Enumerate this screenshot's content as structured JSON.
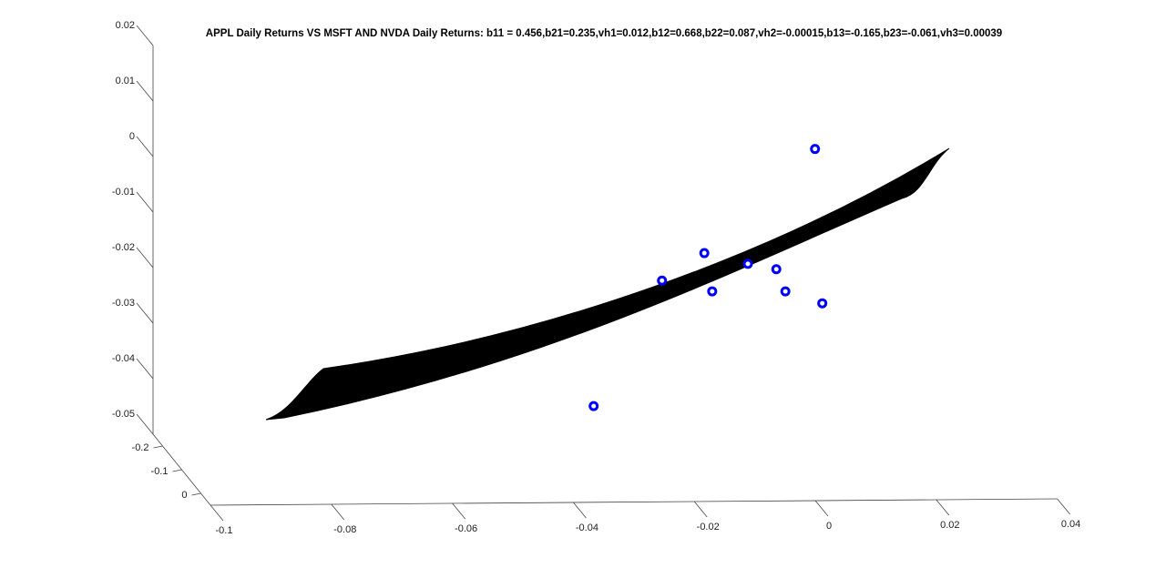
{
  "chart_data": {
    "type": "scatter3d",
    "title": "APPL Daily Returns VS MSFT AND NVDA Daily Returns: b11 = 0.456,b21=0.235,vh1=0.012,b12=0.668,b22=0.087,vh2=-0.00015,b13=-0.165,b23=-0.061,vh3=0.00039",
    "xlim": [
      -0.1,
      0.04
    ],
    "ylim": [
      -0.25,
      0.05
    ],
    "zlim": [
      -0.05,
      0.02
    ],
    "xticks": [
      -0.1,
      -0.08,
      -0.06,
      -0.04,
      -0.02,
      0,
      0.02,
      0.04
    ],
    "yticks": [
      -0.2,
      -0.1,
      0
    ],
    "zticks": [
      -0.05,
      -0.04,
      -0.03,
      -0.02,
      -0.01,
      0,
      0.01,
      0.02
    ],
    "series": [
      {
        "color": "#0000ff",
        "x": [
          0.0047,
          -0.0136,
          -0.0206,
          -0.0064,
          -0.0017,
          -0.0123,
          -0.0002,
          0.0059,
          -0.0319
        ],
        "y": [
          -0.1,
          -0.1,
          -0.1,
          -0.1,
          -0.1,
          -0.1,
          -0.1,
          -0.1,
          -0.1
        ],
        "z": [
          0.0069,
          -0.0117,
          -0.0166,
          -0.0137,
          -0.0147,
          -0.0186,
          -0.0187,
          -0.0209,
          -0.0391
        ]
      }
    ]
  }
}
